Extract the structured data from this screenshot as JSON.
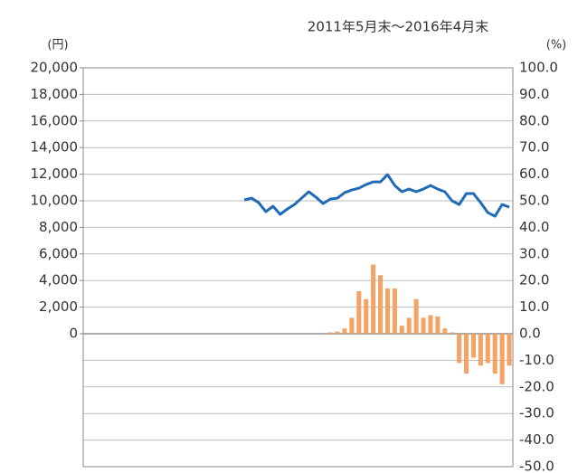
{
  "chart_data": {
    "type": "bar_line",
    "title": "2011年5月末～2016年4月末",
    "y_label": "(円)",
    "y2_label": "(%)",
    "categories": [
      null,
      null,
      null,
      null,
      null,
      null,
      null,
      null,
      null,
      null,
      null,
      null,
      null,
      null,
      null,
      null,
      null,
      null,
      null,
      null,
      null,
      null,
      null,
      null,
      null,
      null,
      null,
      null,
      null,
      null,
      null,
      null,
      null,
      null,
      null,
      null,
      null,
      null,
      null,
      null,
      null,
      null,
      null,
      null,
      null,
      null,
      null,
      null,
      null,
      null,
      null,
      null,
      null,
      null,
      null,
      null,
      null,
      null,
      null,
      null
    ],
    "ylim": [
      -10000,
      20000
    ],
    "yticks": [
      {
        "value": 0,
        "label": "0"
      },
      {
        "value": 2000,
        "label": "2,000"
      },
      {
        "value": 4000,
        "label": "4,000"
      },
      {
        "value": 6000,
        "label": "6,000"
      },
      {
        "value": 8000,
        "label": "8,000"
      },
      {
        "value": 10000,
        "label": "10,000"
      },
      {
        "value": 12000,
        "label": "12,000"
      },
      {
        "value": 14000,
        "label": "14,000"
      },
      {
        "value": 16000,
        "label": "16,000"
      },
      {
        "value": 18000,
        "label": "18,000"
      },
      {
        "value": 20000,
        "label": "20,000"
      }
    ],
    "y2lim": [
      -50,
      100
    ],
    "y2ticks": [
      {
        "value": -50,
        "label": "-50.0"
      },
      {
        "value": -40,
        "label": "-40.0"
      },
      {
        "value": -30,
        "label": "-30.0"
      },
      {
        "value": -20,
        "label": "-20.0"
      },
      {
        "value": -10,
        "label": "-10.0"
      },
      {
        "value": 0,
        "label": "0.0"
      },
      {
        "value": 10,
        "label": "10.0"
      },
      {
        "value": 20,
        "label": "20.0"
      },
      {
        "value": 30,
        "label": "30.0"
      },
      {
        "value": 40,
        "label": "40.0"
      },
      {
        "value": 50,
        "label": "50.0"
      },
      {
        "value": 60,
        "label": "60.0"
      },
      {
        "value": 70,
        "label": "70.0"
      },
      {
        "value": 80,
        "label": "80.0"
      },
      {
        "value": 90,
        "label": "90.0"
      },
      {
        "value": 100,
        "label": "100.0"
      }
    ],
    "grid": true,
    "series": [
      {
        "type": "line",
        "color": "#1f6bb5",
        "values": [
          null,
          null,
          null,
          null,
          null,
          null,
          null,
          null,
          null,
          null,
          null,
          null,
          null,
          null,
          null,
          null,
          null,
          null,
          null,
          null,
          null,
          null,
          10060,
          10200,
          9860,
          9180,
          9590,
          8980,
          9380,
          9720,
          10200,
          10680,
          10270,
          9790,
          10130,
          10200,
          10610,
          10810,
          10950,
          11220,
          11420,
          11420,
          11970,
          11150,
          10680,
          10880,
          10680,
          10880,
          11150,
          10880,
          10680,
          10000,
          9720,
          10540,
          10540,
          9860,
          9110,
          8840,
          9720,
          9520
        ]
      },
      {
        "type": "bar",
        "axis": "y2",
        "color": "#f2a365",
        "values": [
          null,
          null,
          null,
          null,
          null,
          null,
          null,
          null,
          null,
          null,
          null,
          null,
          null,
          null,
          null,
          null,
          null,
          null,
          null,
          null,
          null,
          null,
          null,
          null,
          null,
          null,
          null,
          null,
          null,
          null,
          null,
          null,
          null,
          null,
          0.5,
          0.8,
          2,
          6,
          16,
          13,
          26,
          22,
          17,
          17,
          3,
          6,
          13,
          6,
          7,
          6.5,
          2,
          0.5,
          -11,
          -15,
          -9,
          -12,
          -11,
          -15,
          -19,
          -12
        ]
      }
    ]
  }
}
